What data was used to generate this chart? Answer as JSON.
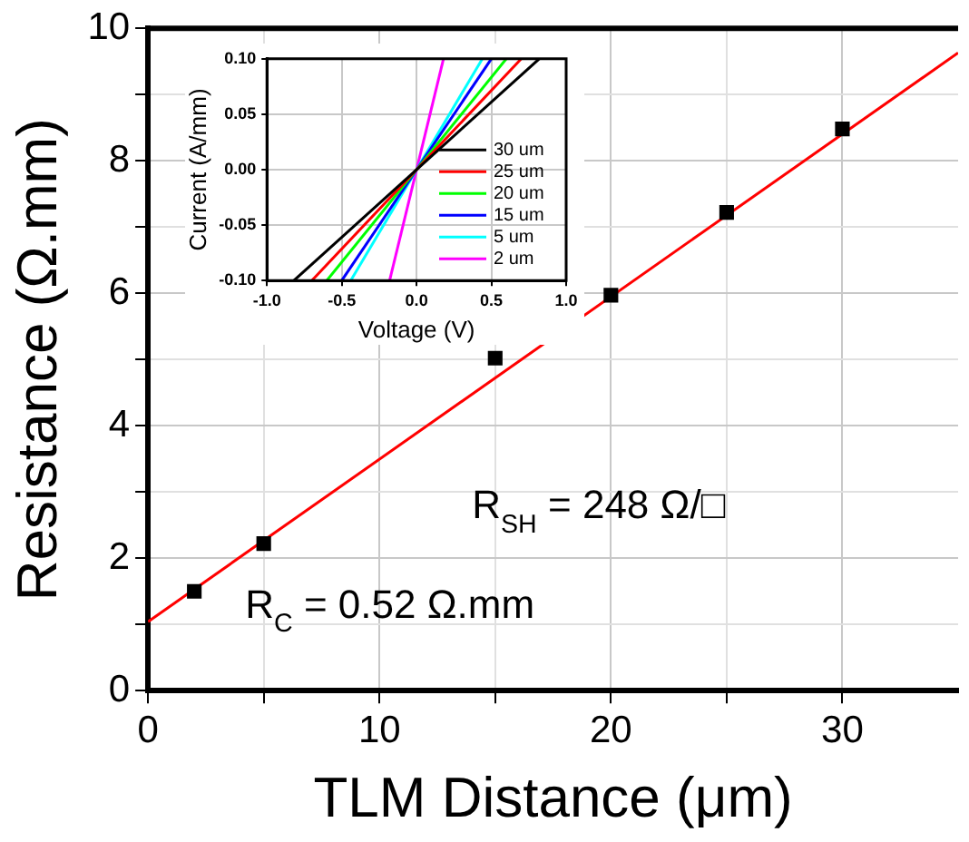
{
  "chart_data": [
    {
      "type": "scatter",
      "xlabel": "TLM Distance (μm)",
      "ylabel": "Resistance (Ω.mm)",
      "xlim": [
        0,
        35
      ],
      "ylim": [
        0,
        10
      ],
      "xticks": [
        0,
        {
          "value": 5,
          "label": null
        },
        10,
        {
          "value": 15,
          "label": null
        },
        20,
        {
          "value": 25,
          "label": null
        },
        30
      ],
      "yticks": [
        0,
        {
          "value": 1,
          "label": null
        },
        2,
        {
          "value": 3,
          "label": null
        },
        4,
        {
          "value": 5,
          "label": null
        },
        6,
        {
          "value": 7,
          "label": null
        },
        8,
        {
          "value": 9,
          "label": null
        },
        10
      ],
      "grid": true,
      "legend": false,
      "series": [
        {
          "marker": "square",
          "color": "#000000",
          "x": [
            2,
            5,
            15,
            20,
            25,
            30
          ],
          "values": [
            1.5,
            2.22,
            5.02,
            5.97,
            7.22,
            8.48
          ]
        },
        {
          "type": "line",
          "color": "#ff0000",
          "x": [
            0,
            35
          ],
          "values": [
            1.04,
            9.63
          ]
        }
      ],
      "annotations": [
        "R$_{SH}$ = 248 Ω/□",
        "R$_{C}$ = 0.52 Ω.mm"
      ]
    },
    {
      "type": "line",
      "xlabel": "Voltage (V)",
      "ylabel": "Current (A/mm)",
      "xlim": [
        -1,
        1
      ],
      "ylim": [
        -0.1,
        0.1
      ],
      "xticks": [
        {
          "value": -1,
          "label": "-1.0"
        },
        {
          "value": -0.5,
          "label": "-0.5"
        },
        {
          "value": 0,
          "label": "0.0"
        },
        {
          "value": 0.5,
          "label": "0.5"
        },
        {
          "value": 1,
          "label": "1.0"
        }
      ],
      "yticks": [
        {
          "value": -0.1,
          "label": "-0.10"
        },
        {
          "value": -0.05,
          "label": "-0.05"
        },
        {
          "value": 0,
          "label": "0.00"
        },
        {
          "value": 0.05,
          "label": "0.05"
        },
        {
          "value": 0.1,
          "label": "0.10"
        }
      ],
      "grid": true,
      "legend": "bottom right",
      "marker": "none",
      "line_style": "solid",
      "series": [
        {
          "name": "30 um",
          "color": "#000000",
          "x": [
            -0.82,
            0.82
          ],
          "values": [
            -0.1,
            0.1
          ]
        },
        {
          "name": "25 um",
          "color": "#ff0000",
          "x": [
            -0.7,
            0.7
          ],
          "values": [
            -0.1,
            0.1
          ]
        },
        {
          "name": "20 um",
          "color": "#00ff00",
          "x": [
            -0.6,
            0.6
          ],
          "values": [
            -0.1,
            0.1
          ]
        },
        {
          "name": "15 um",
          "color": "#0000ff",
          "x": [
            -0.5,
            0.5
          ],
          "values": [
            -0.1,
            0.1
          ]
        },
        {
          "name": "5 um",
          "color": "#00ffff",
          "x": [
            -0.44,
            0.44
          ],
          "values": [
            -0.1,
            0.1
          ]
        },
        {
          "name": "2 um",
          "color": "#ff00ff",
          "x": [
            -0.18,
            0.18
          ],
          "values": [
            -0.1,
            0.1
          ]
        }
      ]
    }
  ]
}
